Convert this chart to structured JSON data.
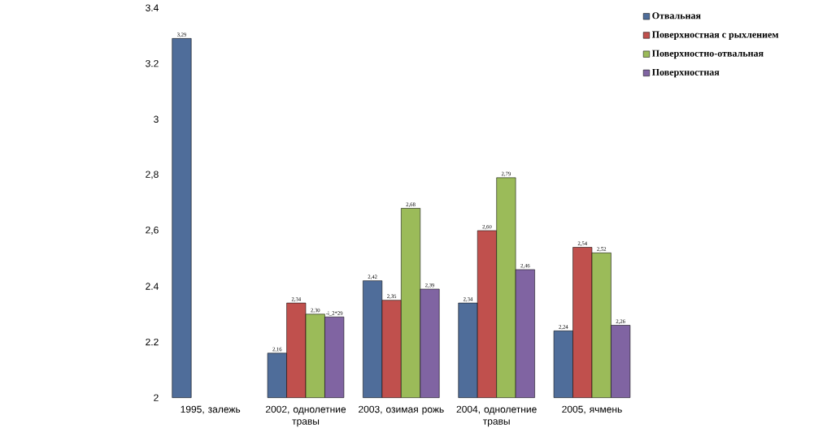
{
  "chart_data": {
    "type": "bar",
    "categories": [
      "1995, залежь",
      "2002, однолетние травы",
      "2003, озимая рожь",
      "2004, однолетние травы",
      "2005, ячмень"
    ],
    "series": [
      {
        "name": "Отвальная",
        "color": "#4f6d9a",
        "values": [
          3.29,
          2.16,
          2.42,
          2.34,
          2.24
        ],
        "value_labels": [
          "3,29",
          "2,16",
          "2,42",
          "2,34",
          "2,24"
        ]
      },
      {
        "name": "Поверхностная с рыхлением",
        "color": "#c0504d",
        "values": [
          null,
          2.34,
          2.35,
          2.6,
          2.54
        ],
        "value_labels": [
          null,
          "2,34",
          "2,35",
          "2,60",
          "2,54"
        ]
      },
      {
        "name": "Поверхностно-отвальная",
        "color": "#9bbb59",
        "values": [
          null,
          2.3,
          2.68,
          2.79,
          2.52
        ],
        "value_labels": [
          null,
          "2,30",
          "2,68",
          "2,79",
          "2,52"
        ]
      },
      {
        "name": "Поверхностная",
        "color": "#8064a2",
        "values": [
          null,
          2.29,
          2.39,
          2.46,
          2.26
        ],
        "value_labels": [
          null,
          "-i_2*29",
          "2,39",
          "2,46",
          "2,26"
        ]
      }
    ],
    "ylim": [
      2,
      3.4
    ],
    "yticks": [
      2,
      {
        "value": 2.2,
        "label": "2.2"
      },
      {
        "value": 2.4,
        "label": "2.4"
      },
      {
        "value": 2.6,
        "label": "2,6"
      },
      {
        "value": 2.8,
        "label": "2,8"
      },
      3,
      {
        "value": 3.2,
        "label": "3.2"
      },
      {
        "value": 3.4,
        "label": "3.4"
      }
    ],
    "legend": "top right",
    "grid": false
  }
}
